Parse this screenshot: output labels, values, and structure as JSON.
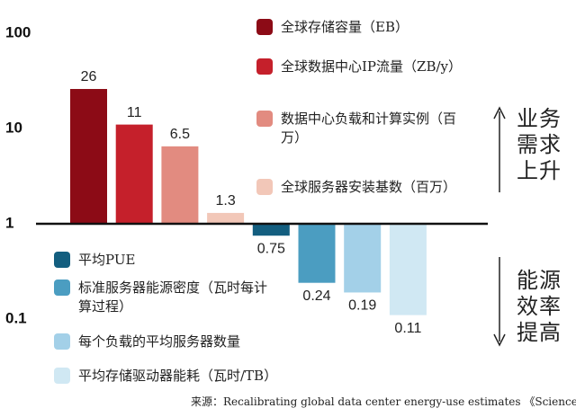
{
  "chart_data": {
    "type": "bar",
    "categories": [
      "全球存储容量（EB）",
      "全球数据中心IP流量（ZB/y）",
      "数据中心负载和计算实例（百万）",
      "全球服务器安装基数（百万）",
      "平均PUE",
      "标准服务器能源密度（瓦时每计算过程）",
      "每个负载的平均服务器数量",
      "平均存储驱动器能耗（瓦时/TB）"
    ],
    "values": [
      26,
      11,
      6.5,
      1.3,
      0.75,
      0.24,
      0.19,
      0.11
    ],
    "colors": [
      "#8c0b16",
      "#c5202b",
      "#e28b80",
      "#f2c7b8",
      "#135e7f",
      "#4b9dc1",
      "#a3d0e8",
      "#d0e8f3"
    ],
    "log_scale": true,
    "ylim": [
      0.01,
      100
    ],
    "yticks": [
      100,
      10,
      1,
      0.1
    ],
    "annotations": [
      "业务需求上升",
      "能源效率提高"
    ],
    "source": "来源：Recalibrating global data center energy-use estimates 《Science》"
  }
}
